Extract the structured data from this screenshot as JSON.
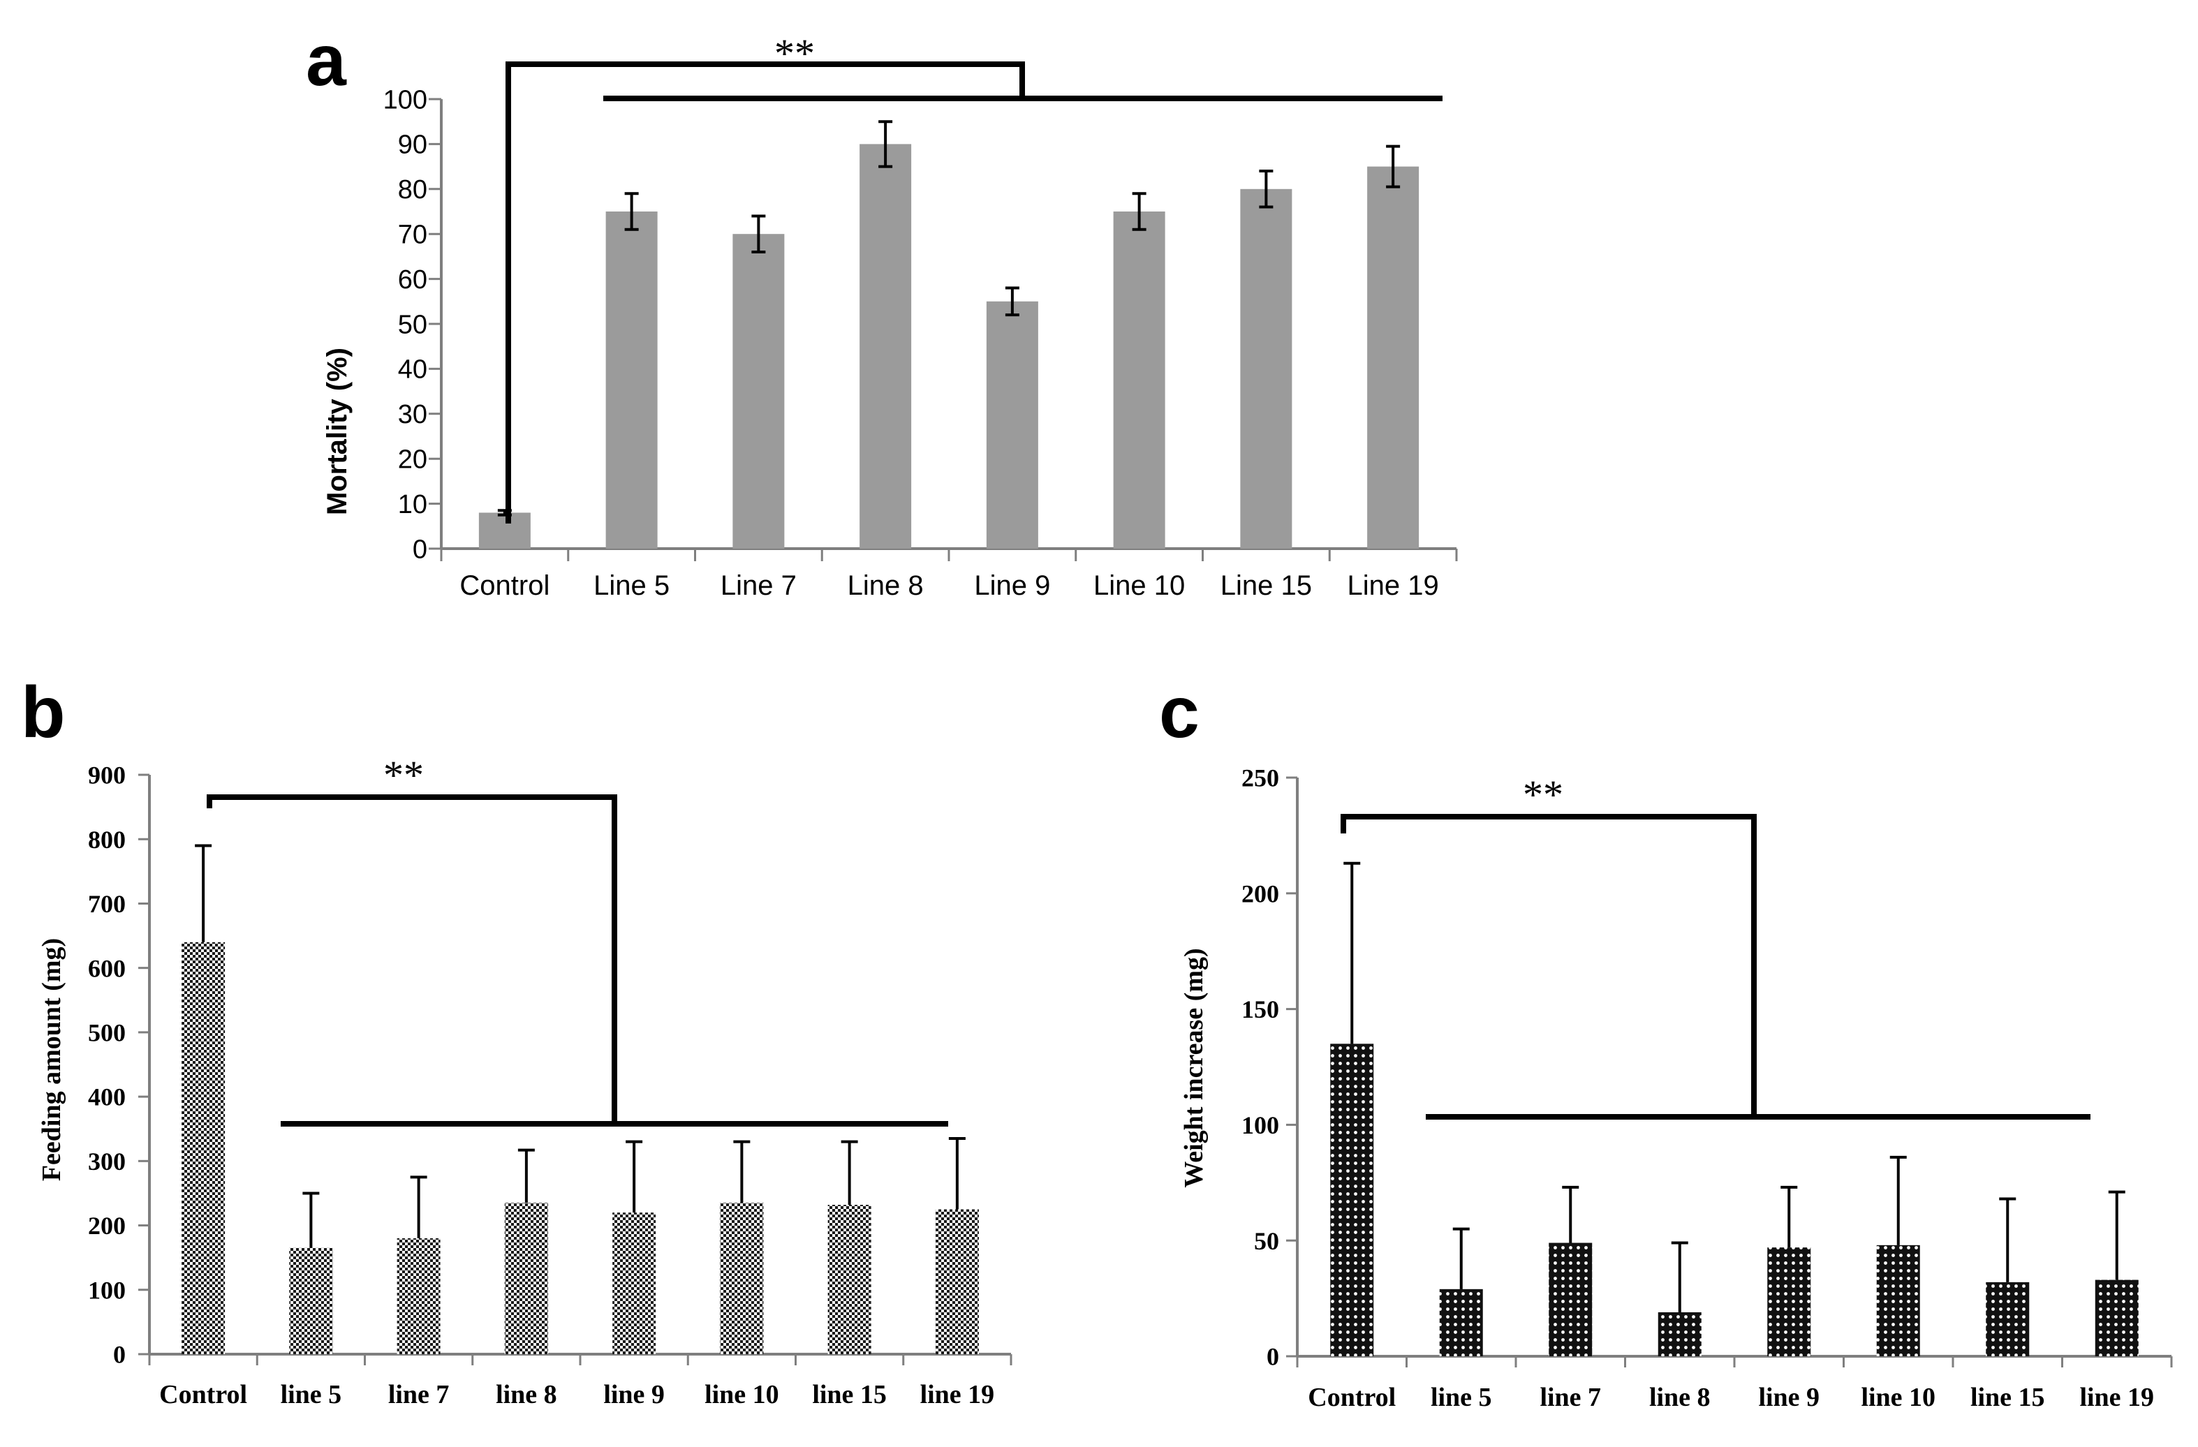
{
  "figure": {
    "panels": [
      {
        "id": "a",
        "panel_label": "a",
        "significance": "**",
        "chart_data": {
          "type": "bar",
          "categories": [
            "Control",
            "Line 5",
            "Line 7",
            "Line 8",
            "Line 9",
            "Line 10",
            "Line 15",
            "Line 19"
          ],
          "values": [
            8,
            75,
            70,
            90,
            55,
            75,
            80,
            85
          ],
          "errors": [
            0.5,
            4,
            4,
            5,
            3,
            4,
            4,
            4.5
          ],
          "title": "",
          "xlabel": "",
          "ylabel": "Mortality  (%)",
          "ylim": [
            0,
            100
          ],
          "yticks": [
            0,
            10,
            20,
            30,
            40,
            50,
            60,
            70,
            80,
            90,
            100
          ],
          "bar_color": "#9b9b9b",
          "pattern": "solid",
          "error_style": "both"
        }
      },
      {
        "id": "b",
        "panel_label": "b",
        "significance": "**",
        "chart_data": {
          "type": "bar",
          "categories": [
            "Control",
            "line 5",
            "line 7",
            "line 8",
            "line 9",
            "line 10",
            "line 15",
            "line 19"
          ],
          "values": [
            640,
            165,
            180,
            235,
            220,
            235,
            232,
            225
          ],
          "errors": [
            150,
            85,
            95,
            82,
            110,
            95,
            98,
            110
          ],
          "title": "",
          "xlabel": "",
          "ylabel": "Feeding  amount (mg)",
          "ylim": [
            0,
            900
          ],
          "yticks": [
            0,
            100,
            200,
            300,
            400,
            500,
            600,
            700,
            800,
            900
          ],
          "bar_color": "#1a1a1a",
          "pattern": "checker",
          "error_style": "up"
        }
      },
      {
        "id": "c",
        "panel_label": "c",
        "significance": "**",
        "chart_data": {
          "type": "bar",
          "categories": [
            "Control",
            "line 5",
            "line 7",
            "line 8",
            "line 9",
            "line 10",
            "line 15",
            "line 19"
          ],
          "values": [
            135,
            29,
            49,
            19,
            47,
            48,
            32,
            33
          ],
          "errors": [
            78,
            26,
            24,
            30,
            26,
            38,
            36,
            38
          ],
          "title": "",
          "xlabel": "",
          "ylabel": "Weight increase (mg)",
          "ylim": [
            0,
            250
          ],
          "yticks": [
            0,
            50,
            100,
            150,
            200,
            250
          ],
          "bar_color": "#111111",
          "pattern": "dots",
          "error_style": "up"
        }
      }
    ]
  }
}
